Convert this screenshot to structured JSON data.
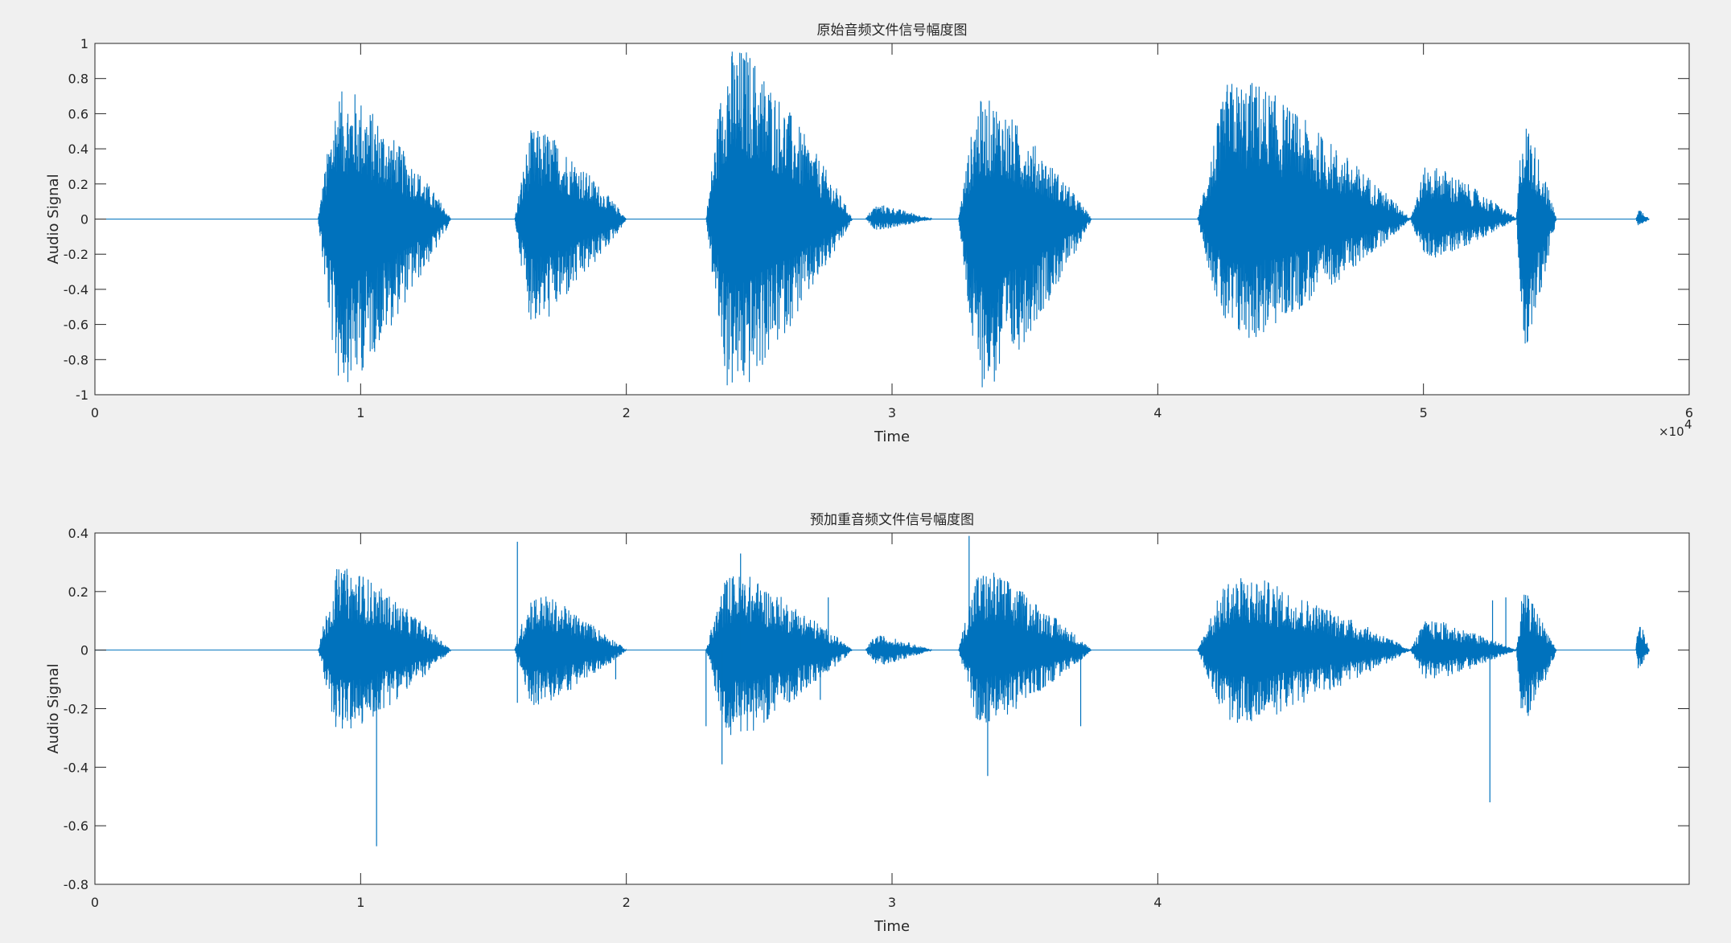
{
  "colors": {
    "background": "#f0f0f0",
    "axes_face": "#ffffff",
    "axes_edge": "#262626",
    "line": "#0072bd"
  },
  "chart_data": [
    {
      "type": "line",
      "title": "原始音频文件信号幅度图",
      "xlabel": "Time",
      "ylabel": "Audio Signal",
      "xlim": [
        0,
        60000
      ],
      "ylim": [
        -1,
        1
      ],
      "x_ticks": [
        0,
        10000,
        20000,
        30000,
        40000,
        50000,
        60000
      ],
      "x_tick_labels": [
        "0",
        "1",
        "2",
        "3",
        "4",
        "5",
        "6"
      ],
      "x_exponent_label": "×10",
      "x_exponent_power": "4",
      "y_ticks": [
        -1,
        -0.8,
        -0.6,
        -0.4,
        -0.2,
        0,
        0.2,
        0.4,
        0.6,
        0.8,
        1
      ],
      "y_tick_labels": [
        "-1",
        "-0.8",
        "-0.6",
        "-0.4",
        "-0.2",
        "0",
        "0.2",
        "0.4",
        "0.6",
        "0.8",
        "1"
      ],
      "grid": false,
      "series": [
        {
          "values_note": "waveform envelope: [start_sample, end_sample, peak_max, peak_min]",
          "segments": [
            [
              8400,
              13400,
              0.73,
              -0.93
            ],
            [
              15800,
              20000,
              0.51,
              -0.59
            ],
            [
              23000,
              28500,
              0.98,
              -0.98
            ],
            [
              29000,
              31500,
              0.08,
              -0.06
            ],
            [
              32500,
              37500,
              0.68,
              -0.96
            ],
            [
              41500,
              49500,
              0.79,
              -0.69
            ],
            [
              49500,
              53500,
              0.3,
              -0.22
            ],
            [
              53500,
              55000,
              0.55,
              -0.72
            ],
            [
              58000,
              58500,
              0.06,
              -0.04
            ]
          ]
        }
      ]
    },
    {
      "type": "line",
      "title": "预加重音频文件信号幅度图",
      "xlabel": "Time",
      "ylabel": "Audio Signal",
      "xlim": [
        0,
        60000
      ],
      "ylim": [
        -0.8,
        0.4
      ],
      "x_ticks": [
        0,
        10000,
        20000,
        30000,
        40000
      ],
      "x_tick_labels": [
        "0",
        "1",
        "2",
        "3",
        "4"
      ],
      "y_ticks": [
        -0.8,
        -0.6,
        -0.4,
        -0.2,
        0,
        0.2,
        0.4
      ],
      "y_tick_labels": [
        "-0.8",
        "-0.6",
        "-0.4",
        "-0.2",
        "0",
        "0.2",
        "0.4"
      ],
      "grid": false,
      "series": [
        {
          "values_note": "waveform envelope: [start_sample, end_sample, peak_max, peak_min]",
          "segments": [
            [
              8400,
              13400,
              0.28,
              -0.28
            ],
            [
              15800,
              20000,
              0.19,
              -0.19
            ],
            [
              23000,
              28500,
              0.26,
              -0.29
            ],
            [
              29000,
              31500,
              0.05,
              -0.05
            ],
            [
              32500,
              37500,
              0.27,
              -0.25
            ],
            [
              41500,
              49500,
              0.25,
              -0.25
            ],
            [
              49500,
              53500,
              0.1,
              -0.1
            ],
            [
              53500,
              55000,
              0.19,
              -0.25
            ],
            [
              58000,
              58500,
              0.1,
              -0.07
            ]
          ],
          "spikes": [
            [
              10600,
              -0.67
            ],
            [
              15900,
              0.37
            ],
            [
              15900,
              -0.18
            ],
            [
              19600,
              -0.1
            ],
            [
              23000,
              -0.26
            ],
            [
              23600,
              -0.39
            ],
            [
              24300,
              0.33
            ],
            [
              27600,
              0.18
            ],
            [
              27300,
              -0.17
            ],
            [
              32900,
              0.39
            ],
            [
              33600,
              -0.43
            ],
            [
              37100,
              -0.26
            ],
            [
              52500,
              -0.52
            ],
            [
              52600,
              0.17
            ],
            [
              53100,
              0.18
            ]
          ]
        }
      ]
    }
  ]
}
